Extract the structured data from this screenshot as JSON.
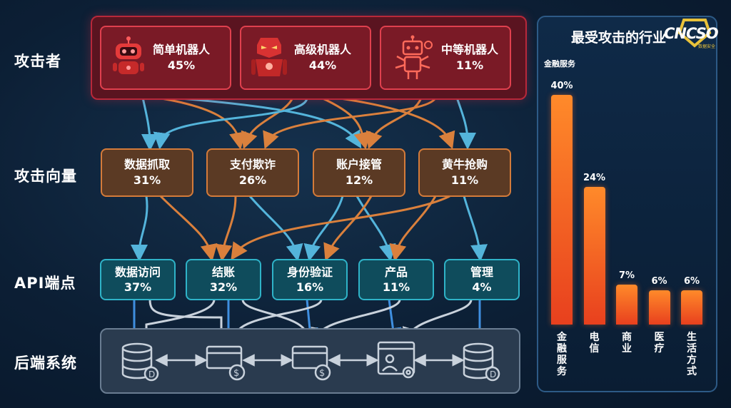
{
  "row_labels": {
    "attackers": "攻击者",
    "vectors": "攻击向量",
    "endpoints": "API端点",
    "backend": "后端系统"
  },
  "attackers": [
    {
      "name": "简单机器人",
      "pct": "45%",
      "icon": "simple-robot-icon"
    },
    {
      "name": "高级机器人",
      "pct": "44%",
      "icon": "advanced-robot-icon"
    },
    {
      "name": "中等机器人",
      "pct": "11%",
      "icon": "medium-robot-icon"
    }
  ],
  "vectors": [
    {
      "name": "数据抓取",
      "pct": "31%"
    },
    {
      "name": "支付欺诈",
      "pct": "26%"
    },
    {
      "name": "账户接管",
      "pct": "12%"
    },
    {
      "name": "黄牛抢购",
      "pct": "11%"
    }
  ],
  "endpoints": [
    {
      "name": "数据访问",
      "pct": "37%"
    },
    {
      "name": "结账",
      "pct": "32%"
    },
    {
      "name": "身份验证",
      "pct": "16%"
    },
    {
      "name": "产品",
      "pct": "11%"
    },
    {
      "name": "管理",
      "pct": "4%"
    }
  ],
  "backend_icons": [
    "database-icon",
    "payment-card-icon",
    "payment-card-icon",
    "user-settings-icon",
    "database-icon"
  ],
  "logo": {
    "text": "CNCSO",
    "sub": "数据安全"
  },
  "chart_data": {
    "type": "bar",
    "title": "最受攻击的行业",
    "categories": [
      "金融服务",
      "电信",
      "商业",
      "医疗",
      "生活方式"
    ],
    "values": [
      40,
      24,
      7,
      6,
      6
    ],
    "value_labels": [
      "40%",
      "24%",
      "7%",
      "6%",
      "6%"
    ],
    "first_category_caption": "金融服务",
    "ylim": [
      0,
      42
    ],
    "xlabel": "",
    "ylabel": ""
  },
  "colors": {
    "attacker_border": "#e0404e",
    "vector_border": "#d47b3a",
    "endpoint_border": "#2fb3c8",
    "bar": "#ff7a28"
  }
}
